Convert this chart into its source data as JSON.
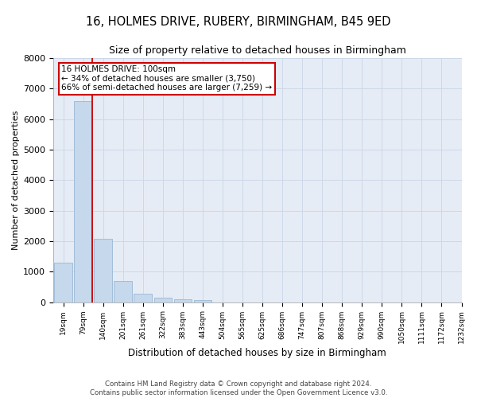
{
  "title_line1": "16, HOLMES DRIVE, RUBERY, BIRMINGHAM, B45 9ED",
  "title_line2": "Size of property relative to detached houses in Birmingham",
  "xlabel": "Distribution of detached houses by size in Birmingham",
  "ylabel": "Number of detached properties",
  "bar_values": [
    1300,
    6600,
    2070,
    690,
    270,
    150,
    100,
    60,
    0,
    0,
    0,
    0,
    0,
    0,
    0,
    0,
    0,
    0,
    0,
    0
  ],
  "bar_labels": [
    "19sqm",
    "79sqm",
    "140sqm",
    "201sqm",
    "261sqm",
    "322sqm",
    "383sqm",
    "443sqm",
    "504sqm",
    "565sqm",
    "625sqm",
    "686sqm",
    "747sqm",
    "807sqm",
    "868sqm",
    "929sqm",
    "990sqm",
    "1050sqm",
    "1111sqm",
    "1172sqm",
    "1232sqm"
  ],
  "bar_color": "#c5d8ec",
  "bar_edgecolor": "#9ab8d4",
  "property_sqm": 100,
  "annotation_title": "16 HOLMES DRIVE: 100sqm",
  "annotation_line1": "← 34% of detached houses are smaller (3,750)",
  "annotation_line2": "66% of semi-detached houses are larger (7,259) →",
  "annotation_box_color": "#ffffff",
  "annotation_box_edgecolor": "#cc0000",
  "vline_color": "#cc0000",
  "ylim": [
    0,
    8000
  ],
  "yticks": [
    0,
    1000,
    2000,
    3000,
    4000,
    5000,
    6000,
    7000,
    8000
  ],
  "grid_color": "#cdd8e8",
  "bg_color": "#e6ecf5",
  "footer_line1": "Contains HM Land Registry data © Crown copyright and database right 2024.",
  "footer_line2": "Contains public sector information licensed under the Open Government Licence v3.0."
}
